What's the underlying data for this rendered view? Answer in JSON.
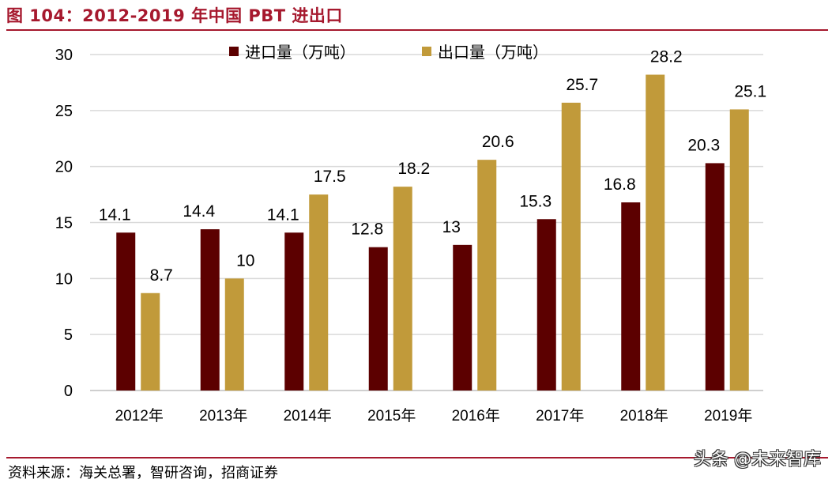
{
  "figure": {
    "title": "图 104：2012-2019 年中国 PBT 进出口",
    "source": "资料来源：海关总署，智研咨询，招商证券",
    "watermark": "头条 @未来智库"
  },
  "chart_data": {
    "type": "bar",
    "title": "",
    "xlabel": "",
    "ylabel": "",
    "categories": [
      "2012年",
      "2013年",
      "2014年",
      "2015年",
      "2016年",
      "2017年",
      "2018年",
      "2019年"
    ],
    "series": [
      {
        "name": "进口量（万吨）",
        "color": "#5c0000",
        "values": [
          14.1,
          14.4,
          14.1,
          12.8,
          13,
          15.3,
          16.8,
          20.3
        ],
        "labels": [
          "14.1",
          "14.4",
          "14.1",
          "12.8",
          "13",
          "15.3",
          "16.8",
          "20.3"
        ]
      },
      {
        "name": "出口量（万吨）",
        "color": "#c19a3a",
        "values": [
          8.7,
          10,
          17.5,
          18.2,
          20.6,
          25.7,
          28.2,
          25.1
        ],
        "labels": [
          "8.7",
          "10",
          "17.5",
          "18.2",
          "20.6",
          "25.7",
          "28.2",
          "25.1"
        ]
      }
    ],
    "ylim": [
      0,
      30
    ],
    "yticks": [
      "0",
      "5",
      "10",
      "15",
      "20",
      "25",
      "30"
    ],
    "grid": true,
    "gridColor": "#d9d9d9",
    "legend": "top"
  }
}
